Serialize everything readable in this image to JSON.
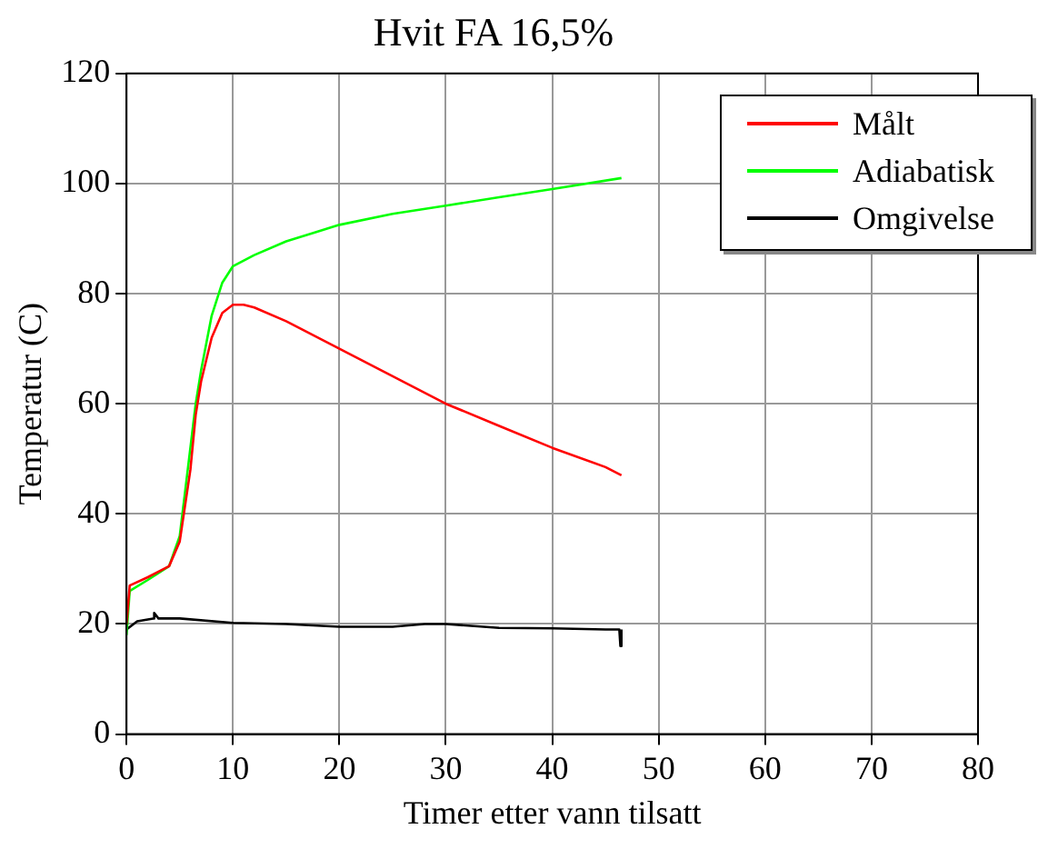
{
  "chart_data": {
    "type": "line",
    "title": "Hvit FA 16,5%",
    "xlabel": "Timer etter vann tilsatt",
    "ylabel": "Temperatur (C)",
    "xlim": [
      0,
      80
    ],
    "xticks": [
      0,
      10,
      20,
      30,
      40,
      50,
      60,
      70,
      80
    ],
    "ylim": [
      0,
      120
    ],
    "yticks": [
      0,
      20,
      40,
      60,
      80,
      100,
      120
    ],
    "grid": true,
    "legend": "top right",
    "marker": "none",
    "line_style": "solid",
    "series": [
      {
        "name": "Målt",
        "color": "#ff0000",
        "x": [
          0,
          0.3,
          2,
          4,
          5,
          6,
          6.5,
          7,
          8,
          9,
          10,
          11,
          12,
          15,
          20,
          25,
          30,
          35,
          40,
          45,
          46.5
        ],
        "values": [
          20,
          27,
          28.5,
          30.5,
          35,
          48,
          58,
          64,
          72,
          76.5,
          78,
          78,
          77.5,
          75,
          70,
          65,
          60,
          56,
          52,
          48.5,
          47
        ]
      },
      {
        "name": "Adiabatisk",
        "color": "#00ff00",
        "x": [
          0,
          0.3,
          2,
          4,
          5,
          6,
          6.5,
          7,
          8,
          9,
          10,
          12,
          15,
          20,
          25,
          30,
          35,
          40,
          46.5
        ],
        "values": [
          18,
          26,
          28,
          30.5,
          36,
          52,
          60,
          66,
          76,
          82,
          85,
          87,
          89.5,
          92.5,
          94.5,
          96,
          97.5,
          99,
          101
        ]
      },
      {
        "name": "Omgivelse",
        "color": "#000000",
        "x": [
          0,
          1,
          2.5,
          2.6,
          3,
          5,
          10,
          15,
          20,
          25,
          28,
          30,
          35,
          40,
          45,
          46.3,
          46.4,
          46.5
        ],
        "values": [
          19,
          20.5,
          21,
          22,
          21,
          21,
          20.2,
          20,
          19.5,
          19.5,
          20,
          20,
          19.3,
          19.2,
          19,
          19,
          16,
          19
        ]
      }
    ]
  }
}
